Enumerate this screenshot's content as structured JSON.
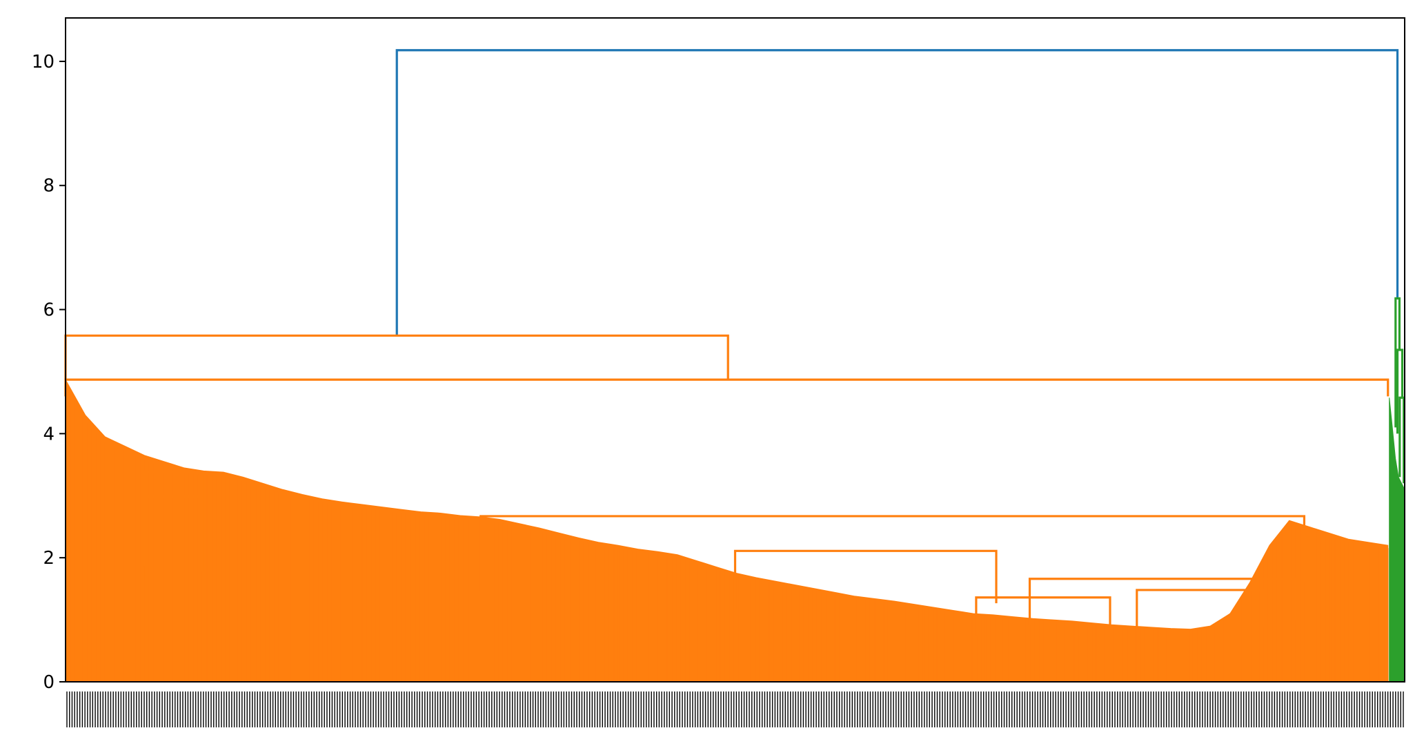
{
  "chart_data": {
    "type": "dendrogram",
    "title": "",
    "xlabel": "",
    "ylabel": "",
    "ylim": [
      0,
      10.7
    ],
    "yticks": [
      0,
      2,
      4,
      6,
      8,
      10
    ],
    "grid": false,
    "legend": "none",
    "colors": {
      "above_threshold": "#1f77b4",
      "cluster_1": "#ff7f0e",
      "cluster_2": "#2ca02c",
      "axes": "#000000"
    },
    "leaf_count_estimate": 520,
    "merges": [
      {
        "name": "root",
        "height": 10.18,
        "left_center_frac": 0.2474,
        "right_center_frac": 0.9946,
        "color": "above_threshold"
      },
      {
        "name": "orange-top",
        "height": 5.58,
        "left_center_frac": 0.0,
        "right_center_frac": 0.4947,
        "color": "cluster_1"
      },
      {
        "name": "orange-second",
        "height": 4.87,
        "left_center_frac": 0.0,
        "right_center_frac": 0.9875,
        "color": "cluster_1"
      },
      {
        "name": "green-top",
        "height": 6.18,
        "left_center_frac": 0.9932,
        "right_center_frac": 0.9961,
        "color": "cluster_2"
      },
      {
        "name": "green-mid",
        "height": 5.35,
        "left_center_frac": 0.9946,
        "right_center_frac": 0.9982,
        "color": "cluster_2"
      },
      {
        "name": "green-low",
        "height": 4.58,
        "left_center_frac": 0.9963,
        "right_center_frac": 0.9993,
        "color": "cluster_2"
      },
      {
        "name": "orange-sub-a",
        "height": 3.38,
        "left_center_frac": 0.0589,
        "right_center_frac": 0.1021,
        "color": "cluster_1"
      },
      {
        "name": "orange-sub-b",
        "height": 2.98,
        "left_center_frac": 0.06,
        "right_center_frac": 0.1021,
        "color": "cluster_1"
      },
      {
        "name": "orange-sub-c",
        "height": 2.67,
        "left_center_frac": 0.31,
        "right_center_frac": 0.925,
        "color": "cluster_1"
      },
      {
        "name": "orange-sub-d",
        "height": 2.11,
        "left_center_frac": 0.5,
        "right_center_frac": 0.695,
        "color": "cluster_1"
      },
      {
        "name": "orange-sub-e",
        "height": 1.66,
        "left_center_frac": 0.72,
        "right_center_frac": 0.918,
        "color": "cluster_1"
      },
      {
        "name": "orange-sub-f",
        "height": 1.48,
        "left_center_frac": 0.8,
        "right_center_frac": 0.895,
        "color": "cluster_1"
      },
      {
        "name": "orange-sub-g",
        "height": 1.36,
        "left_center_frac": 0.68,
        "right_center_frac": 0.78,
        "color": "cluster_1"
      }
    ],
    "orange_envelope_heights": [
      4.87,
      4.3,
      3.95,
      3.8,
      3.65,
      3.55,
      3.45,
      3.4,
      3.38,
      3.3,
      3.2,
      3.1,
      3.02,
      2.95,
      2.9,
      2.86,
      2.82,
      2.78,
      2.74,
      2.72,
      2.68,
      2.66,
      2.62,
      2.55,
      2.48,
      2.4,
      2.32,
      2.25,
      2.2,
      2.14,
      2.1,
      2.05,
      1.95,
      1.85,
      1.75,
      1.68,
      1.62,
      1.56,
      1.5,
      1.44,
      1.38,
      1.34,
      1.3,
      1.25,
      1.2,
      1.15,
      1.1,
      1.08,
      1.05,
      1.02,
      1.0,
      0.98,
      0.95,
      0.92,
      0.9,
      0.88,
      0.86,
      0.85,
      0.9,
      1.1,
      1.6,
      2.2,
      2.6,
      2.5,
      2.4,
      2.3,
      2.25,
      2.2
    ],
    "green_envelope_heights": [
      4.58,
      4.1,
      3.6,
      3.3,
      3.2,
      3.1
    ]
  }
}
